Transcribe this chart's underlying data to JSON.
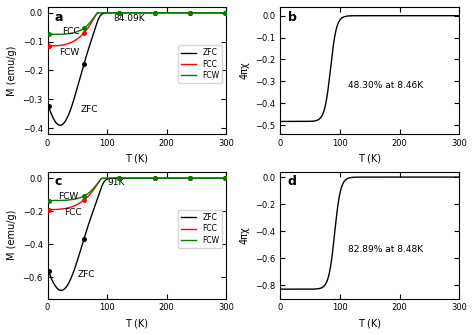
{
  "panel_a": {
    "label": "a",
    "annotation": "84.09K",
    "ylabel": "M (emu/g)",
    "xlabel": "T (K)",
    "ylim": [
      -0.42,
      0.02
    ],
    "xlim": [
      0,
      300
    ],
    "yticks": [
      0,
      -0.1,
      -0.2,
      -0.3,
      -0.4
    ],
    "xticks": [
      0,
      100,
      200,
      300
    ],
    "legend_labels": [
      "ZFC",
      "FCC",
      "FCW"
    ],
    "legend_colors": [
      "black",
      "red",
      "green"
    ],
    "Tc": 84.09,
    "zfc_min": -0.39,
    "fcc_min": -0.115,
    "fcw_min": -0.075
  },
  "panel_b": {
    "label": "b",
    "annotation": "48.30% at 8.46K",
    "ylabel": "4πχ",
    "xlabel": "T (K)",
    "ylim": [
      -0.54,
      0.04
    ],
    "xlim": [
      0,
      300
    ],
    "yticks": [
      0,
      -0.1,
      -0.2,
      -0.3,
      -0.4,
      -0.5
    ],
    "xticks": [
      0,
      100,
      200,
      300
    ],
    "Tc": 84.09,
    "chi_min": -0.483
  },
  "panel_c": {
    "label": "c",
    "annotation": "91K",
    "ylabel": "M (emu/g)",
    "xlabel": "T (K)",
    "ylim": [
      -0.73,
      0.04
    ],
    "xlim": [
      0,
      300
    ],
    "yticks": [
      0,
      -0.2,
      -0.4,
      -0.6
    ],
    "xticks": [
      0,
      100,
      200,
      300
    ],
    "legend_labels": [
      "ZFC",
      "FCC",
      "FCW"
    ],
    "legend_colors": [
      "black",
      "red",
      "green"
    ],
    "Tc": 91.0,
    "zfc_min": -0.68,
    "fcc_min": -0.19,
    "fcw_min": -0.135
  },
  "panel_d": {
    "label": "d",
    "annotation": "82.89% at 8.48K",
    "ylabel": "4πχ",
    "xlabel": "T (K)",
    "ylim": [
      -0.9,
      0.04
    ],
    "xlim": [
      0,
      300
    ],
    "yticks": [
      0,
      -0.2,
      -0.4,
      -0.6,
      -0.8
    ],
    "xticks": [
      0,
      100,
      200,
      300
    ],
    "Tc": 91.0,
    "chi_min": -0.83
  },
  "fig_bgcolor": "white"
}
